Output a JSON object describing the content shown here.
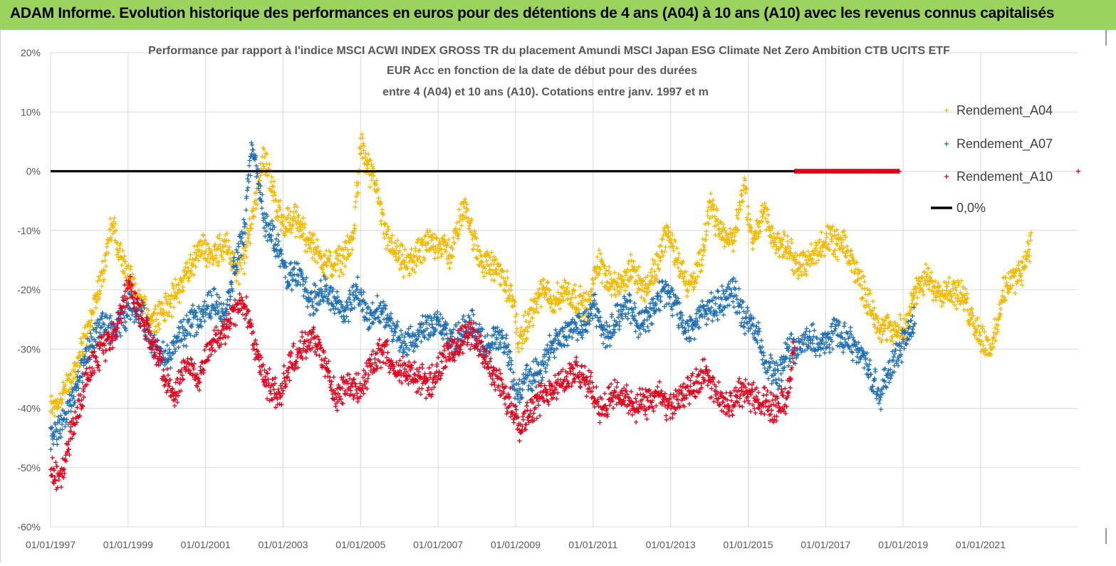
{
  "banner": {
    "title": "ADAM Informe. Evolution historique des performances en euros pour des détentions de 4 ans (A04) à 10 ans (A10) avec les revenus connus capitalisés"
  },
  "colors": {
    "a04": "#f5b800",
    "a07": "#1f6fb5",
    "a10": "#e3001b",
    "zero": "#000000",
    "grid": "#d9d9d9",
    "banner": "#9bd35f"
  },
  "chart_data": {
    "type": "scatter",
    "title_lines": [
      "Performance par rapport à l'indice MSCI ACWI INDEX GROSS TR  du placement Amundi MSCI Japan ESG Climate Net Zero Ambition CTB UCITS ETF",
      "EUR Acc en fonction de la date de début pour des durées",
      "entre 4 (A04) et 10 ans (A10).  Cotations entre janv. 1997 et m"
    ],
    "x_tick_labels": [
      "01/01/1997",
      "01/01/1999",
      "01/01/2001",
      "01/01/2003",
      "01/01/2005",
      "01/01/2007",
      "01/01/2009",
      "01/01/2011",
      "01/01/2013",
      "01/01/2015",
      "01/01/2017",
      "01/01/2019",
      "01/01/2021"
    ],
    "x_tick_years": [
      1997,
      1999,
      2001,
      2003,
      2005,
      2007,
      2009,
      2011,
      2013,
      2015,
      2017,
      2019,
      2021
    ],
    "x_range": [
      1997.0,
      2023.5
    ],
    "y_tick_labels": [
      "20%",
      "10%",
      "0%",
      "-10%",
      "-20%",
      "-30%",
      "-40%",
      "-50%",
      "-60%"
    ],
    "y_ticks": [
      20,
      10,
      0,
      -10,
      -20,
      -30,
      -40,
      -50,
      -60
    ],
    "y_range": [
      -60,
      20
    ],
    "ylabel": "",
    "xlabel": "",
    "grid": true,
    "legend_position": "right",
    "legend": [
      "Rendement_A04",
      "Rendement_A07",
      "Rendement_A10",
      "0,0%"
    ],
    "reference_line": {
      "name": "0,0%",
      "value": 0
    },
    "series": [
      {
        "name": "Rendement_A04",
        "x": [
          1997.0,
          1997.3,
          1997.6,
          1998.0,
          1998.3,
          1998.6,
          1998.8,
          1999.0,
          1999.3,
          1999.6,
          2000.0,
          2000.3,
          2000.6,
          2000.9,
          2001.2,
          2001.5,
          2001.8,
          2002.0,
          2002.2,
          2002.5,
          2002.8,
          2003.0,
          2003.3,
          2003.6,
          2003.9,
          2004.2,
          2004.5,
          2004.8,
          2005.0,
          2005.2,
          2005.4,
          2005.6,
          2005.9,
          2006.2,
          2006.5,
          2006.8,
          2007.0,
          2007.3,
          2007.5,
          2007.7,
          2008.0,
          2008.3,
          2008.6,
          2008.9,
          2009.1,
          2009.4,
          2009.7,
          2010.0,
          2010.3,
          2010.6,
          2010.9,
          2011.1,
          2011.4,
          2011.7,
          2012.0,
          2012.3,
          2012.6,
          2012.9,
          2013.2,
          2013.5,
          2013.8,
          2014.0,
          2014.3,
          2014.6,
          2014.9,
          2015.1,
          2015.4,
          2015.7,
          2016.0,
          2016.3,
          2016.6,
          2016.9,
          2017.2,
          2017.5,
          2017.8,
          2018.1,
          2018.4,
          2018.7,
          2019.0,
          2019.3,
          2019.6,
          2019.9,
          2020.2,
          2020.5,
          2020.8,
          2021.0,
          2021.3,
          2021.6,
          2021.9,
          2022.1,
          2022.3
        ],
        "values": [
          -40,
          -38,
          -34,
          -26,
          -18,
          -9,
          -14,
          -18,
          -22,
          -25,
          -23,
          -20,
          -16,
          -13,
          -14,
          -12,
          -17,
          -15,
          -8,
          3,
          -5,
          -9,
          -8,
          -11,
          -14,
          -16,
          -15,
          -12,
          5,
          0,
          -2,
          -10,
          -14,
          -16,
          -14,
          -12,
          -12,
          -14,
          -10,
          -5,
          -14,
          -16,
          -17,
          -21,
          -29,
          -24,
          -20,
          -22,
          -20,
          -22,
          -23,
          -15,
          -18,
          -20,
          -16,
          -20,
          -17,
          -10,
          -15,
          -20,
          -15,
          -6,
          -10,
          -12,
          -2,
          -12,
          -7,
          -12,
          -13,
          -16,
          -15,
          -12,
          -12,
          -13,
          -17,
          -22,
          -26,
          -27,
          -27,
          -21,
          -18,
          -20,
          -20,
          -21,
          -25,
          -28,
          -30,
          -20,
          -18,
          -16,
          -12
        ]
      },
      {
        "name": "Rendement_A07",
        "x": [
          1997.0,
          1997.3,
          1997.6,
          1998.0,
          1998.3,
          1998.6,
          1998.9,
          1999.1,
          1999.4,
          1999.7,
          2000.0,
          2000.3,
          2000.6,
          2000.9,
          2001.2,
          2001.5,
          2001.8,
          2002.0,
          2002.2,
          2002.5,
          2002.8,
          2003.1,
          2003.4,
          2003.7,
          2004.0,
          2004.3,
          2004.6,
          2004.9,
          2005.2,
          2005.5,
          2005.8,
          2006.1,
          2006.4,
          2006.7,
          2007.0,
          2007.3,
          2007.6,
          2007.9,
          2008.2,
          2008.5,
          2008.8,
          2009.0,
          2009.3,
          2009.6,
          2009.9,
          2010.2,
          2010.5,
          2010.8,
          2011.0,
          2011.3,
          2011.6,
          2011.9,
          2012.2,
          2012.5,
          2012.8,
          2013.1,
          2013.4,
          2013.7,
          2014.0,
          2014.3,
          2014.6,
          2014.9,
          2015.2,
          2015.5,
          2015.8,
          2016.0,
          2016.3,
          2016.6,
          2016.9,
          2017.2,
          2017.5,
          2017.8,
          2018.1,
          2018.4,
          2018.6,
          2018.9,
          2019.1,
          2019.3
        ],
        "values": [
          -45,
          -43,
          -38,
          -30,
          -26,
          -27,
          -25,
          -22,
          -25,
          -30,
          -32,
          -28,
          -26,
          -24,
          -22,
          -24,
          -15,
          -10,
          5,
          -8,
          -12,
          -18,
          -17,
          -22,
          -20,
          -22,
          -24,
          -20,
          -25,
          -23,
          -26,
          -30,
          -28,
          -26,
          -25,
          -29,
          -27,
          -26,
          -30,
          -28,
          -30,
          -38,
          -35,
          -34,
          -30,
          -28,
          -26,
          -26,
          -22,
          -28,
          -25,
          -22,
          -26,
          -24,
          -20,
          -22,
          -27,
          -25,
          -23,
          -22,
          -20,
          -25,
          -27,
          -33,
          -35,
          -30,
          -30,
          -28,
          -30,
          -27,
          -28,
          -30,
          -33,
          -38,
          -34,
          -30,
          -28,
          -25
        ]
      },
      {
        "name": "Rendement_A10",
        "x": [
          1997.0,
          1997.2,
          1997.4,
          1997.6,
          1997.9,
          1998.1,
          1998.4,
          1998.7,
          1999.0,
          1999.3,
          1999.6,
          1999.9,
          2000.2,
          2000.5,
          2000.8,
          2001.1,
          2001.4,
          2001.7,
          2002.0,
          2002.3,
          2002.6,
          2002.9,
          2003.2,
          2003.5,
          2003.8,
          2004.1,
          2004.4,
          2004.7,
          2005.0,
          2005.3,
          2005.6,
          2005.9,
          2006.2,
          2006.5,
          2006.8,
          2007.1,
          2007.4,
          2007.7,
          2008.0,
          2008.3,
          2008.6,
          2008.9,
          2009.1,
          2009.4,
          2009.7,
          2010.0,
          2010.3,
          2010.6,
          2010.9,
          2011.2,
          2011.5,
          2011.8,
          2012.1,
          2012.4,
          2012.7,
          2013.0,
          2013.3,
          2013.6,
          2013.9,
          2014.2,
          2014.5,
          2014.8,
          2015.1,
          2015.4,
          2015.7,
          2016.0,
          2016.2
        ],
        "values": [
          -50,
          -52,
          -48,
          -42,
          -36,
          -32,
          -30,
          -27,
          -19,
          -24,
          -28,
          -34,
          -38,
          -32,
          -35,
          -30,
          -28,
          -24,
          -22,
          -30,
          -36,
          -38,
          -32,
          -30,
          -28,
          -33,
          -38,
          -36,
          -37,
          -32,
          -30,
          -33,
          -34,
          -35,
          -36,
          -32,
          -30,
          -28,
          -28,
          -33,
          -36,
          -40,
          -43,
          -40,
          -38,
          -36,
          -35,
          -34,
          -36,
          -40,
          -38,
          -38,
          -40,
          -39,
          -38,
          -40,
          -38,
          -36,
          -34,
          -38,
          -40,
          -37,
          -38,
          -39,
          -40,
          -38,
          -30
        ]
      }
    ],
    "flat_segment": {
      "name": "Rendement_A10",
      "x_start": 2016.2,
      "x_end": 2018.9,
      "value": 0
    }
  }
}
